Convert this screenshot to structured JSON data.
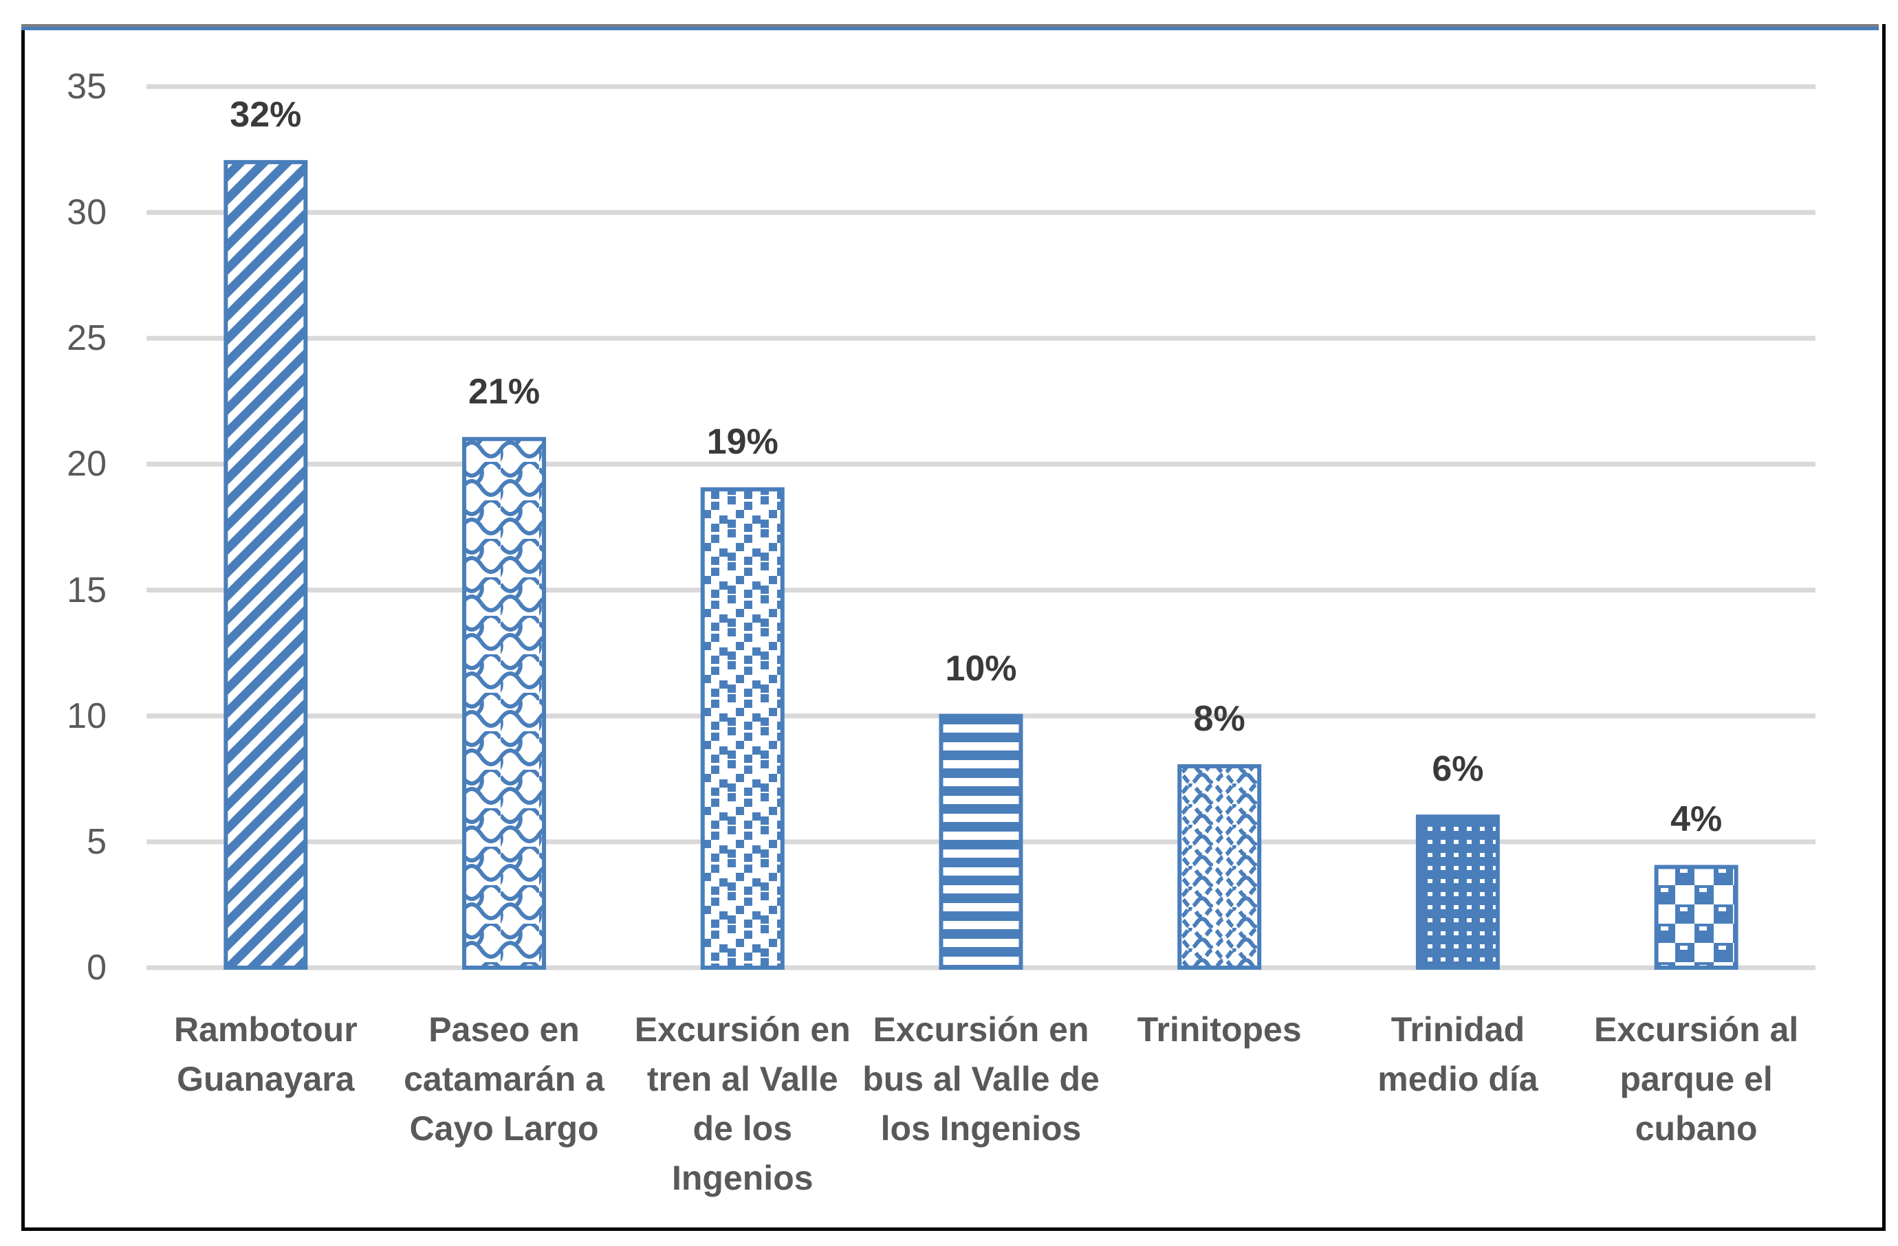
{
  "chart_data": {
    "type": "bar",
    "title": "",
    "categories": [
      "Rambotour Guanayara",
      "Paseo en catamarán a Cayo Largo",
      "Excursión en tren al Valle de los Ingenios",
      "Excursión en bus al Valle de los Ingenios",
      "Trinitopes",
      "Trinidad medio día",
      "Excursión al parque el cubano"
    ],
    "values": [
      32,
      21,
      19,
      10,
      8,
      6,
      4
    ],
    "data_labels": [
      "32%",
      "21%",
      "19%",
      "10%",
      "8%",
      "6%",
      "4%"
    ],
    "xlabel": "",
    "ylabel": "",
    "ylim": [
      0,
      35
    ],
    "yticks": [
      0,
      5,
      10,
      15,
      20,
      25,
      30,
      35
    ],
    "ytick_labels": [
      "0",
      "5",
      "10",
      "15",
      "20",
      "25",
      "30",
      "35"
    ],
    "grid": true,
    "legend_position": "none",
    "bar_patterns": [
      "wide-upward-diagonal",
      "shingle",
      "large-confetti",
      "light-horizontal",
      "wave",
      "dotted-90",
      "large-checker"
    ],
    "colors": {
      "bar_blue": "#4a7ebb",
      "gridline": "#d9d9d9",
      "tick_label": "#595959",
      "category_label": "#595959",
      "data_label": "#3a3a3a",
      "frame_border": "#000000",
      "frame_top_gray": "#7f7f7f",
      "frame_top_blue": "#4a7ebb",
      "background": "#ffffff"
    }
  }
}
